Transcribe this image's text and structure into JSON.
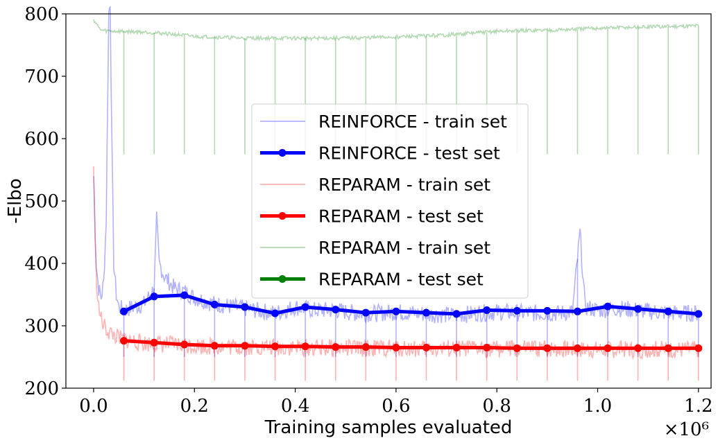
{
  "chart_data": {
    "type": "line",
    "xlabel": "Training samples evaluated",
    "ylabel": "-Elbo",
    "x_multiplier_label": "×10⁶",
    "xlim": [
      -0.055,
      1.225
    ],
    "ylim": [
      200,
      800
    ],
    "x_ticks": [
      0.0,
      0.2,
      0.4,
      0.6,
      0.8,
      1.0,
      1.2
    ],
    "x_tick_labels": [
      "0.0",
      "0.2",
      "0.4",
      "0.6",
      "0.8",
      "1.0",
      "1.2"
    ],
    "y_ticks": [
      200,
      300,
      400,
      500,
      600,
      700,
      800
    ],
    "y_tick_labels": [
      "200",
      "300",
      "400",
      "500",
      "600",
      "700",
      "800"
    ],
    "grid": false,
    "legend_position": "center",
    "series": [
      {
        "name": "REINFORCE - train set",
        "kind": "train",
        "color": "#0000ff",
        "x": [
          0.0,
          0.005,
          0.01,
          0.015,
          0.02,
          0.025,
          0.03,
          0.033,
          0.036,
          0.04,
          0.045,
          0.05,
          0.06,
          0.08,
          0.1,
          0.12,
          0.125,
          0.13,
          0.14,
          0.16,
          0.18,
          0.2,
          0.24,
          0.28,
          0.32,
          0.36,
          0.4,
          0.44,
          0.48,
          0.52,
          0.56,
          0.6,
          0.64,
          0.68,
          0.72,
          0.76,
          0.8,
          0.84,
          0.88,
          0.92,
          0.95,
          0.965,
          0.975,
          1.0,
          1.04,
          1.08,
          1.12,
          1.16,
          1.2
        ],
        "values": [
          540,
          400,
          360,
          345,
          370,
          470,
          800,
          820,
          600,
          400,
          350,
          330,
          325,
          330,
          335,
          360,
          470,
          400,
          380,
          360,
          355,
          345,
          335,
          330,
          325,
          320,
          330,
          325,
          325,
          320,
          320,
          322,
          320,
          318,
          317,
          320,
          322,
          321,
          320,
          320,
          322,
          450,
          330,
          325,
          328,
          325,
          322,
          320,
          320
        ],
        "spikes_x": [
          0.06,
          0.12,
          0.18,
          0.24,
          0.3,
          0.36,
          0.42,
          0.48,
          0.54,
          0.6,
          0.66,
          0.72,
          0.78,
          0.84,
          0.9,
          0.96,
          1.02,
          1.08,
          1.14,
          1.2
        ],
        "spike_min": 250
      },
      {
        "name": "REINFORCE - test set",
        "kind": "test",
        "color": "#0000ff",
        "x": [
          0.06,
          0.12,
          0.18,
          0.24,
          0.3,
          0.36,
          0.42,
          0.48,
          0.54,
          0.6,
          0.66,
          0.72,
          0.78,
          0.84,
          0.9,
          0.96,
          1.02,
          1.08,
          1.14,
          1.2
        ],
        "values": [
          323,
          347,
          349,
          334,
          330,
          320,
          330,
          326,
          321,
          323,
          321,
          319,
          325,
          324,
          324,
          323,
          331,
          327,
          323,
          319
        ]
      },
      {
        "name": "REPARAM - train set",
        "kind": "train",
        "color": "#ff0000",
        "x": [
          0.0,
          0.003,
          0.006,
          0.01,
          0.015,
          0.02,
          0.03,
          0.04,
          0.05,
          0.06,
          0.08,
          0.1,
          0.15,
          0.2,
          0.3,
          0.4,
          0.5,
          0.6,
          0.7,
          0.8,
          0.9,
          1.0,
          1.1,
          1.2
        ],
        "values": [
          555,
          430,
          370,
          330,
          310,
          300,
          290,
          285,
          280,
          278,
          275,
          272,
          270,
          268,
          266,
          265,
          264,
          264,
          263,
          263,
          263,
          262,
          262,
          262
        ],
        "spikes_x": [
          0.06,
          0.12,
          0.18,
          0.24,
          0.3,
          0.36,
          0.42,
          0.48,
          0.54,
          0.6,
          0.66,
          0.72,
          0.78,
          0.84,
          0.9,
          0.96,
          1.02,
          1.08,
          1.14,
          1.2
        ],
        "spike_min": 212
      },
      {
        "name": "REPARAM - test set",
        "kind": "test",
        "color": "#ff0000",
        "x": [
          0.06,
          0.12,
          0.18,
          0.24,
          0.3,
          0.36,
          0.42,
          0.48,
          0.54,
          0.6,
          0.66,
          0.72,
          0.78,
          0.84,
          0.9,
          0.96,
          1.02,
          1.08,
          1.14,
          1.2
        ],
        "values": [
          276,
          273,
          270,
          268,
          268,
          267,
          267,
          266,
          266,
          265,
          265,
          265,
          265,
          264,
          264,
          264,
          264,
          264,
          264,
          264
        ]
      },
      {
        "name": "REPARAM - train set",
        "kind": "train",
        "color": "#008000",
        "x": [
          0.0,
          0.005,
          0.01,
          0.015,
          0.02,
          0.05,
          0.1,
          0.15,
          0.2,
          0.3,
          0.4,
          0.5,
          0.6,
          0.7,
          0.75,
          0.8,
          0.85,
          0.9,
          0.95,
          1.0,
          1.05,
          1.1,
          1.15,
          1.2
        ],
        "values": [
          791,
          785,
          778,
          774,
          773,
          772,
          771,
          768,
          764,
          761,
          761,
          761,
          763,
          766,
          769,
          772,
          773,
          774,
          775,
          777,
          778,
          779,
          780,
          781
        ],
        "spikes_x": [
          0.06,
          0.12,
          0.18,
          0.24,
          0.3,
          0.36,
          0.42,
          0.48,
          0.54,
          0.6,
          0.66,
          0.72,
          0.78,
          0.84,
          0.9,
          0.96,
          1.02,
          1.08,
          1.14,
          1.2
        ],
        "spike_min": 575
      },
      {
        "name": "REPARAM - test set",
        "kind": "test",
        "color": "#008000",
        "x": [],
        "values": []
      }
    ]
  }
}
